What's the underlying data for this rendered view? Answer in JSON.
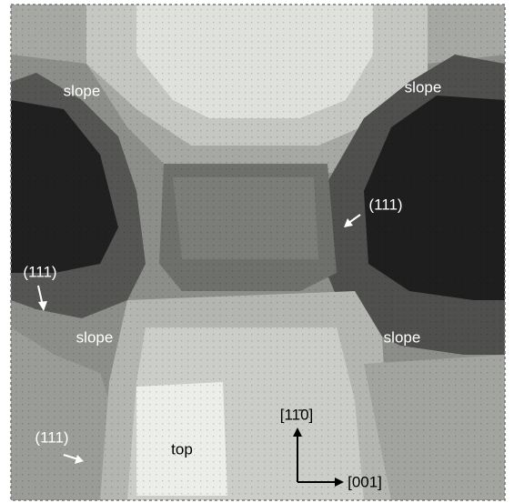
{
  "labels": [
    "slope",
    "slope",
    "slope",
    "slope",
    "(111)",
    "(111)",
    "(111)",
    "top",
    "[11̄0]",
    "[001]"
  ]
}
